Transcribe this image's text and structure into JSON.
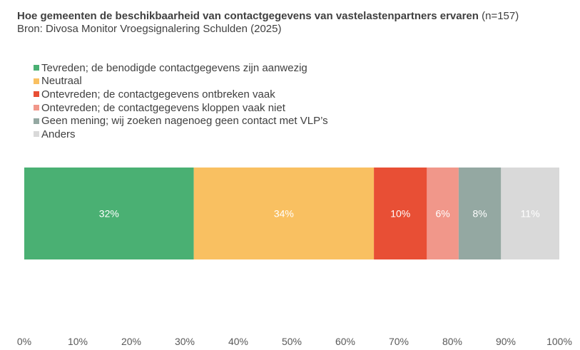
{
  "chart_data": {
    "type": "bar",
    "orientation": "horizontal",
    "stacked": true,
    "title_bold": "Hoe gemeenten de beschikbaarheid van contactgegevens van vastelastenpartners ervaren",
    "title_suffix": " (n=157)",
    "subtitle": "Bron: Divosa Monitor Vroegsignalering Schulden (2025)",
    "series": [
      {
        "name": "Tevreden; de benodigde contactgegevens zijn aanwezig",
        "value": 32,
        "label": "32%",
        "color": "#4AB073"
      },
      {
        "name": "Neutraal",
        "value": 34,
        "label": "34%",
        "color": "#F9C061"
      },
      {
        "name": "Ontevreden; de contactgegevens ontbreken vaak",
        "value": 10,
        "label": "10%",
        "color": "#E84F35"
      },
      {
        "name": "Ontevreden; de contactgegevens kloppen vaak niet",
        "value": 6,
        "label": "6%",
        "color": "#F1978A"
      },
      {
        "name": "Geen mening; wij zoeken nagenoeg geen contact met VLP’s",
        "value": 8,
        "label": "8%",
        "color": "#94A8A2"
      },
      {
        "name": "Anders",
        "value": 11,
        "label": "11%",
        "color": "#D9D9D9"
      }
    ],
    "xlim": [
      0,
      100
    ],
    "x_ticks": [
      "0%",
      "10%",
      "20%",
      "30%",
      "40%",
      "50%",
      "60%",
      "70%",
      "80%",
      "90%",
      "100%"
    ],
    "legend_position": "top-left",
    "grid": false
  }
}
